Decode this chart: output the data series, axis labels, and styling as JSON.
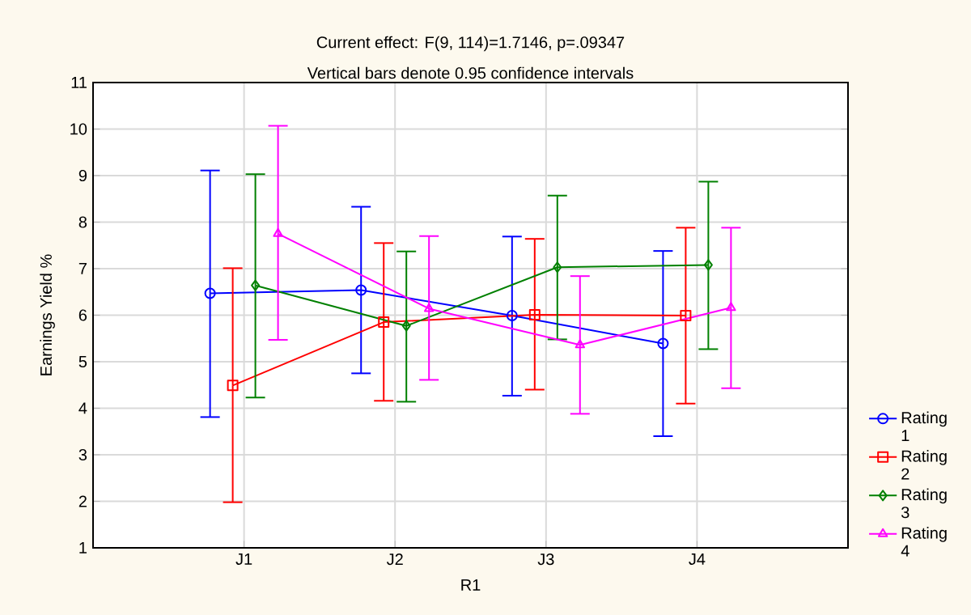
{
  "chart_data": {
    "type": "line",
    "title": "Current effect: F(9, 114)=1.7146, p=.09347",
    "subtitle": "Vertical bars denote 0.95 confidence intervals",
    "xlabel": "R1",
    "ylabel": "Earnings Yield %",
    "categories": [
      "J1",
      "J2",
      "J3",
      "J4"
    ],
    "series": [
      {
        "name": "Rating 1",
        "color": "#0000ff",
        "marker": "circle",
        "values": [
          6.47,
          6.54,
          5.99,
          5.39
        ],
        "errors": [
          [
            3.81,
            9.11
          ],
          [
            4.75,
            8.33
          ],
          [
            4.27,
            7.69
          ],
          [
            3.4,
            7.38
          ]
        ]
      },
      {
        "name": "Rating 2",
        "color": "#ff0000",
        "marker": "square",
        "values": [
          4.49,
          5.85,
          6.01,
          5.99
        ],
        "errors": [
          [
            1.98,
            7.01
          ],
          [
            4.16,
            7.55
          ],
          [
            4.4,
            7.64
          ],
          [
            4.1,
            7.88
          ]
        ]
      },
      {
        "name": "Rating 3",
        "color": "#008000",
        "marker": "diamond",
        "values": [
          6.64,
          5.77,
          7.03,
          7.08
        ],
        "errors": [
          [
            4.23,
            9.03
          ],
          [
            4.14,
            7.37
          ],
          [
            5.48,
            8.57
          ],
          [
            5.27,
            8.87
          ]
        ]
      },
      {
        "name": "Rating 4",
        "color": "#ff00ff",
        "marker": "triangle",
        "values": [
          7.75,
          6.14,
          5.36,
          6.16
        ],
        "errors": [
          [
            5.47,
            10.07
          ],
          [
            4.61,
            7.7
          ],
          [
            3.88,
            6.84
          ],
          [
            4.43,
            7.88
          ]
        ]
      }
    ],
    "ylim": [
      1,
      11
    ],
    "yticks": [
      1,
      2,
      3,
      4,
      5,
      6,
      7,
      8,
      9,
      10,
      11
    ],
    "grid": true,
    "legend": "bottom right",
    "line_style": "solid"
  }
}
